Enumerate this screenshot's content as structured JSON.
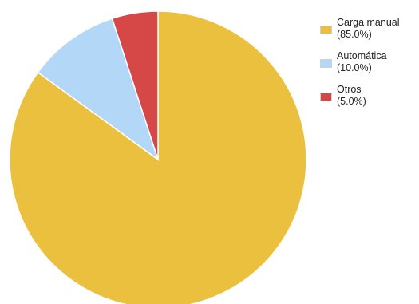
{
  "chart_data": {
    "type": "pie",
    "title": "",
    "slices": [
      {
        "label": "Carga manual",
        "value": 85.0,
        "pct_text": "(85.0%)",
        "color": "#ebc03f"
      },
      {
        "label": "Automática",
        "value": 10.0,
        "pct_text": "(10.0%)",
        "color": "#b3d8f7"
      },
      {
        "label": "Otros",
        "value": 5.0,
        "pct_text": "(5.0%)",
        "color": "#d64848"
      }
    ],
    "legend_position": "top-right",
    "start_angle": "top (12 o'clock)",
    "direction": "clockwise"
  }
}
